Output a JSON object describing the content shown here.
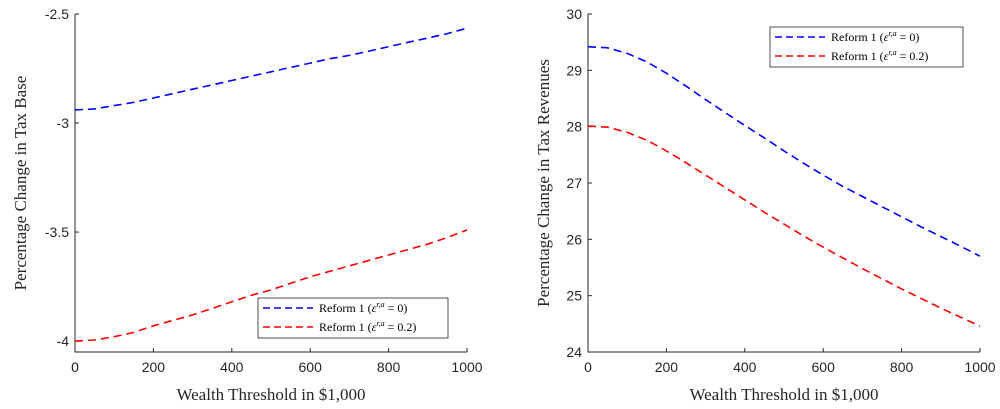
{
  "chart_data": [
    {
      "type": "line",
      "xlabel": "Wealth Threshold in $1,000",
      "ylabel": "Percentage Change in Tax Base",
      "xlim": [
        0,
        1000
      ],
      "ylim": [
        -4.05,
        -2.5
      ],
      "xticks": [
        0,
        200,
        400,
        600,
        800,
        1000
      ],
      "xtick_labels": [
        "0",
        "200",
        "400",
        "600",
        "800",
        "1000"
      ],
      "yticks": [
        -2.5,
        -3,
        -3.5,
        -4
      ],
      "ytick_labels": [
        "-2.5",
        "-3",
        "-3.5",
        "-4"
      ],
      "legend_location": "bottom-right",
      "grid": false,
      "series": [
        {
          "name": "Reform 1 (ε^{r,a} = 0)",
          "color": "#0000ff",
          "x": [
            0,
            50,
            100,
            150,
            200,
            250,
            300,
            350,
            400,
            450,
            500,
            550,
            600,
            650,
            700,
            750,
            800,
            850,
            900,
            950,
            1000
          ],
          "y": [
            -2.94,
            -2.935,
            -2.92,
            -2.905,
            -2.885,
            -2.865,
            -2.845,
            -2.825,
            -2.805,
            -2.785,
            -2.765,
            -2.745,
            -2.725,
            -2.705,
            -2.69,
            -2.67,
            -2.65,
            -2.63,
            -2.61,
            -2.59,
            -2.565
          ]
        },
        {
          "name": "Reform 1 (ε^{r,a} = 0.2)",
          "color": "#ff0000",
          "x": [
            0,
            50,
            100,
            150,
            200,
            250,
            300,
            350,
            400,
            450,
            500,
            550,
            600,
            650,
            700,
            750,
            800,
            850,
            900,
            950,
            1000
          ],
          "y": [
            -4.0,
            -3.995,
            -3.98,
            -3.96,
            -3.93,
            -3.905,
            -3.88,
            -3.85,
            -3.82,
            -3.79,
            -3.765,
            -3.735,
            -3.705,
            -3.68,
            -3.655,
            -3.63,
            -3.605,
            -3.58,
            -3.555,
            -3.525,
            -3.49
          ]
        }
      ]
    },
    {
      "type": "line",
      "xlabel": "Wealth Threshold in $1,000",
      "ylabel": "Percentage Change in Tax Revenues",
      "xlim": [
        0,
        1000
      ],
      "ylim": [
        24,
        30
      ],
      "xticks": [
        0,
        200,
        400,
        600,
        800,
        1000
      ],
      "xtick_labels": [
        "0",
        "200",
        "400",
        "600",
        "800",
        "1000"
      ],
      "yticks": [
        24,
        25,
        26,
        27,
        28,
        29,
        30
      ],
      "ytick_labels": [
        "24",
        "25",
        "26",
        "27",
        "28",
        "29",
        "30"
      ],
      "legend_location": "top-right",
      "grid": false,
      "series": [
        {
          "name": "Reform 1 (ε^{r,a} = 0)",
          "color": "#0000ff",
          "x": [
            0,
            50,
            100,
            150,
            200,
            250,
            300,
            350,
            400,
            450,
            500,
            550,
            600,
            650,
            700,
            750,
            800,
            850,
            900,
            950,
            1000
          ],
          "y": [
            29.42,
            29.4,
            29.3,
            29.15,
            28.95,
            28.72,
            28.48,
            28.25,
            28.02,
            27.8,
            27.57,
            27.35,
            27.14,
            26.94,
            26.76,
            26.58,
            26.4,
            26.22,
            26.05,
            25.88,
            25.7
          ]
        },
        {
          "name": "Reform 1 (ε^{r,a} = 0.2)",
          "color": "#ff0000",
          "x": [
            0,
            50,
            100,
            150,
            200,
            250,
            300,
            350,
            400,
            450,
            500,
            550,
            600,
            650,
            700,
            750,
            800,
            850,
            900,
            950,
            1000
          ],
          "y": [
            28.01,
            27.99,
            27.9,
            27.76,
            27.57,
            27.36,
            27.14,
            26.92,
            26.7,
            26.48,
            26.27,
            26.06,
            25.86,
            25.67,
            25.48,
            25.3,
            25.12,
            24.95,
            24.78,
            24.62,
            24.46
          ]
        }
      ]
    }
  ]
}
